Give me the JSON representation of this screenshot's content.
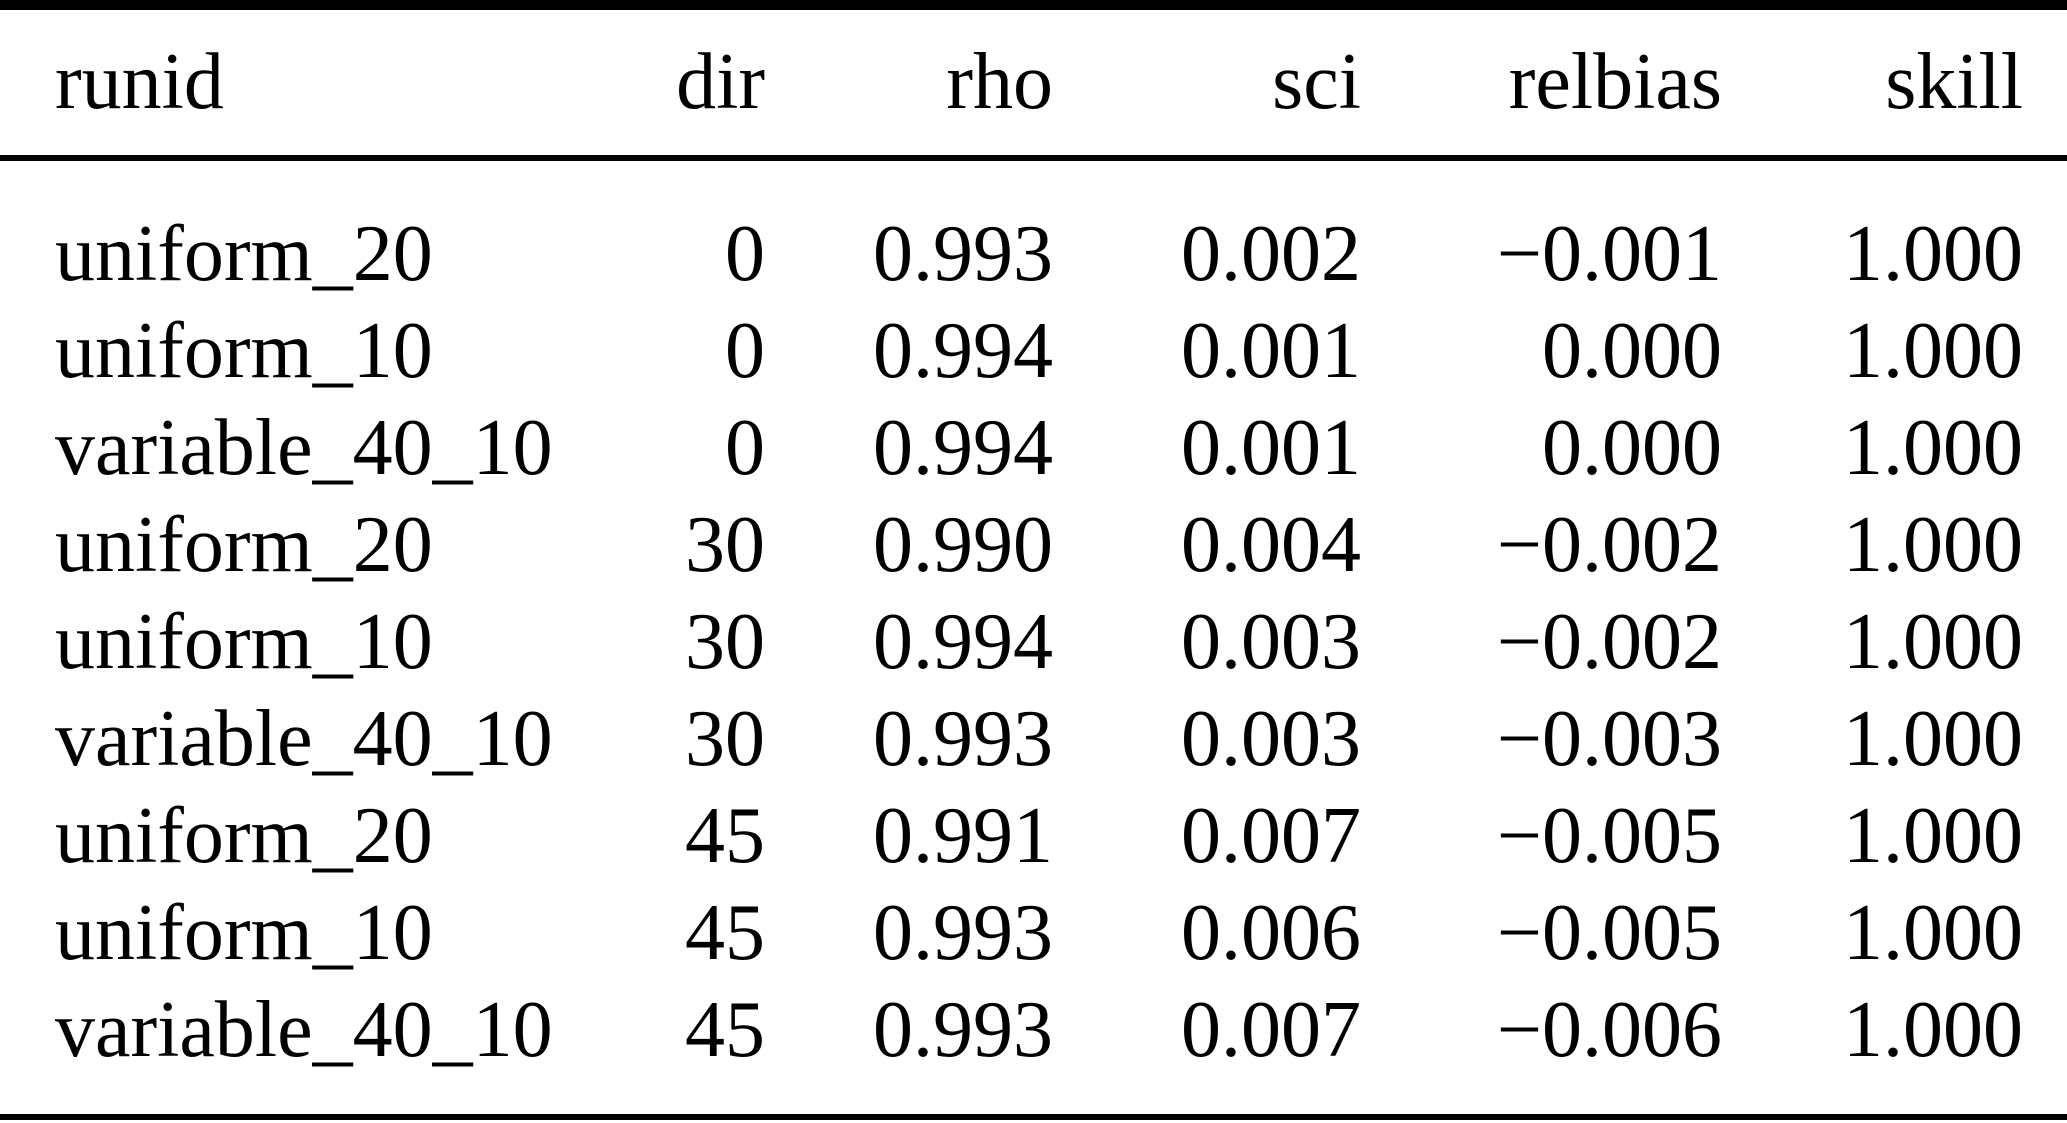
{
  "table": {
    "columns": [
      {
        "key": "runid",
        "label": "runid",
        "align": "left"
      },
      {
        "key": "dir",
        "label": "dir",
        "align": "right"
      },
      {
        "key": "rho",
        "label": "rho",
        "align": "right"
      },
      {
        "key": "sci",
        "label": "sci",
        "align": "right"
      },
      {
        "key": "relbias",
        "label": "relbias",
        "align": "right"
      },
      {
        "key": "skill",
        "label": "skill",
        "align": "right"
      }
    ],
    "rows": [
      [
        "uniform_20",
        "0",
        "0.993",
        "0.002",
        "−0.001",
        "1.000"
      ],
      [
        "uniform_10",
        "0",
        "0.994",
        "0.001",
        "0.000",
        "1.000"
      ],
      [
        "variable_40_10",
        "0",
        "0.994",
        "0.001",
        "0.000",
        "1.000"
      ],
      [
        "uniform_20",
        "30",
        "0.990",
        "0.004",
        "−0.002",
        "1.000"
      ],
      [
        "uniform_10",
        "30",
        "0.994",
        "0.003",
        "−0.002",
        "1.000"
      ],
      [
        "variable_40_10",
        "30",
        "0.993",
        "0.003",
        "−0.003",
        "1.000"
      ],
      [
        "uniform_20",
        "45",
        "0.991",
        "0.007",
        "−0.005",
        "1.000"
      ],
      [
        "uniform_10",
        "45",
        "0.993",
        "0.006",
        "−0.005",
        "1.000"
      ],
      [
        "variable_40_10",
        "45",
        "0.993",
        "0.007",
        "−0.006",
        "1.000"
      ]
    ]
  },
  "colors": {
    "text": "#000000",
    "background": "#ffffff",
    "rule": "#000000"
  }
}
